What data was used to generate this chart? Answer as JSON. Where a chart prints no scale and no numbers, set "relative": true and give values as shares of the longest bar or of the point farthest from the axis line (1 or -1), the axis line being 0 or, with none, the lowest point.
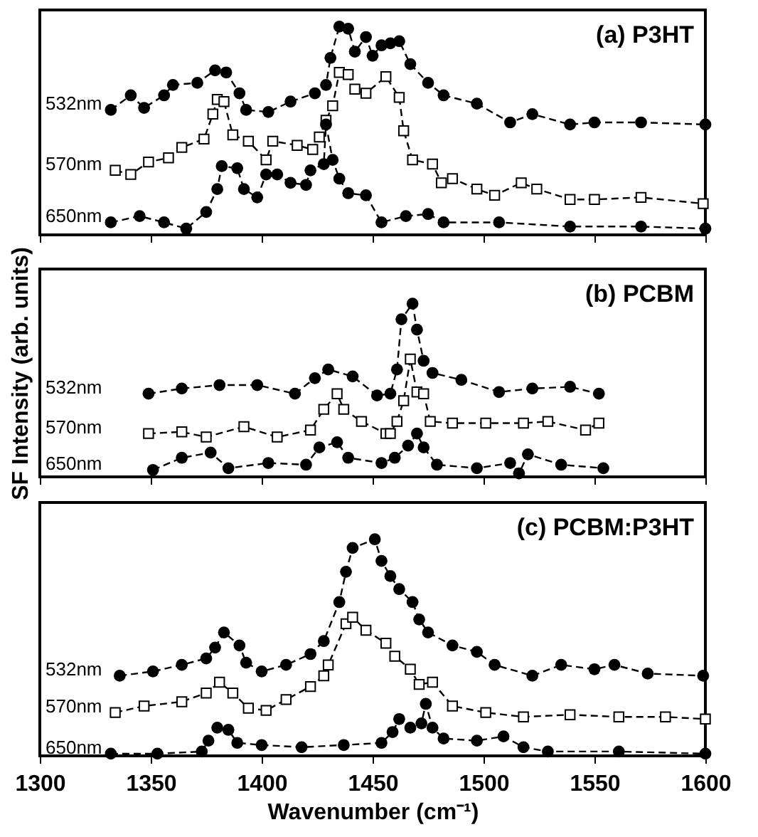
{
  "chart_data": [
    {
      "type": "line",
      "title": "(a) P3HT",
      "relative": true,
      "line_style": "dashed",
      "grid": false,
      "tick_labels": false,
      "xlim": [
        1300,
        1600
      ],
      "xticks": [
        1300,
        1350,
        1400,
        1450,
        1500,
        1550,
        1600
      ],
      "series": [
        {
          "name": "532nm",
          "color": "#000000",
          "marker": "circle",
          "x": [
            1332,
            1341,
            1347,
            1356,
            1360,
            1371,
            1379,
            1384,
            1390,
            1393,
            1403,
            1413,
            1424,
            1429,
            1431,
            1435,
            1439,
            1442,
            1447,
            1450,
            1454,
            1458,
            1462,
            1467,
            1475,
            1482,
            1497,
            1512,
            1522,
            1539,
            1550,
            1571,
            1600
          ],
          "values": [
            0.6,
            0.67,
            0.61,
            0.67,
            0.72,
            0.73,
            0.79,
            0.78,
            0.68,
            0.6,
            0.59,
            0.64,
            0.68,
            0.72,
            0.85,
            1.0,
            0.99,
            0.88,
            0.95,
            0.86,
            0.91,
            0.92,
            0.93,
            0.82,
            0.73,
            0.67,
            0.63,
            0.54,
            0.58,
            0.53,
            0.54,
            0.54,
            0.53
          ]
        },
        {
          "name": "570nm",
          "color": "#000000",
          "marker": "square",
          "x": [
            1334,
            1341,
            1349,
            1358,
            1364,
            1374,
            1378,
            1380,
            1383,
            1387,
            1394,
            1402,
            1405,
            1416,
            1423,
            1426,
            1429,
            1432,
            1435,
            1439,
            1442,
            1447,
            1456,
            1462,
            1464,
            1468,
            1477,
            1481,
            1486,
            1497,
            1505,
            1517,
            1524,
            1539,
            1550,
            1571,
            1599
          ],
          "values": [
            0.31,
            0.29,
            0.35,
            0.37,
            0.42,
            0.46,
            0.58,
            0.65,
            0.64,
            0.48,
            0.45,
            0.36,
            0.45,
            0.43,
            0.41,
            0.47,
            0.55,
            0.62,
            0.78,
            0.77,
            0.7,
            0.68,
            0.76,
            0.66,
            0.5,
            0.36,
            0.34,
            0.25,
            0.27,
            0.22,
            0.19,
            0.25,
            0.22,
            0.17,
            0.17,
            0.18,
            0.15
          ]
        },
        {
          "name": "650nm",
          "color": "#000000",
          "marker": "circle",
          "x": [
            1332,
            1345,
            1356,
            1366,
            1375,
            1380,
            1382,
            1389,
            1392,
            1398,
            1402,
            1407,
            1413,
            1420,
            1422,
            1428,
            1429,
            1432,
            1435,
            1439,
            1447,
            1454,
            1465,
            1475,
            1482,
            1507,
            1539,
            1571,
            1600
          ],
          "values": [
            0.06,
            0.09,
            0.06,
            0.03,
            0.11,
            0.22,
            0.33,
            0.32,
            0.22,
            0.18,
            0.29,
            0.29,
            0.25,
            0.24,
            0.31,
            0.34,
            0.53,
            0.36,
            0.27,
            0.2,
            0.19,
            0.06,
            0.09,
            0.1,
            0.06,
            0.06,
            0.04,
            0.04,
            0.03
          ]
        }
      ]
    },
    {
      "type": "line",
      "title": "(b) PCBM",
      "ylabel": "SF Intensity (arb. units)",
      "relative": true,
      "line_style": "dashed",
      "grid": false,
      "tick_labels": false,
      "xlim": [
        1300,
        1600
      ],
      "xticks": [
        1300,
        1350,
        1400,
        1450,
        1500,
        1550,
        1600
      ],
      "series": [
        {
          "name": "532nm",
          "color": "#000000",
          "marker": "circle",
          "x": [
            1349,
            1364,
            1381,
            1398,
            1415,
            1424,
            1430,
            1441,
            1452,
            1458,
            1461,
            1463,
            1468,
            1470,
            1473,
            1477,
            1490,
            1507,
            1522,
            1539,
            1552
          ],
          "values": [
            0.48,
            0.51,
            0.53,
            0.53,
            0.48,
            0.57,
            0.62,
            0.58,
            0.47,
            0.48,
            0.62,
            0.91,
            1.0,
            0.85,
            0.67,
            0.6,
            0.56,
            0.49,
            0.51,
            0.52,
            0.48
          ]
        },
        {
          "name": "570nm",
          "color": "#000000",
          "marker": "square",
          "x": [
            1349,
            1364,
            1375,
            1392,
            1407,
            1422,
            1428,
            1434,
            1437,
            1445,
            1456,
            1458,
            1461,
            1464,
            1467,
            1470,
            1473,
            1476,
            1486,
            1501,
            1518,
            1529,
            1546,
            1552
          ],
          "values": [
            0.25,
            0.26,
            0.23,
            0.29,
            0.23,
            0.27,
            0.39,
            0.48,
            0.39,
            0.32,
            0.25,
            0.25,
            0.32,
            0.44,
            0.68,
            0.49,
            0.48,
            0.32,
            0.31,
            0.31,
            0.31,
            0.32,
            0.27,
            0.31
          ]
        },
        {
          "name": "650nm",
          "color": "#000000",
          "marker": "circle",
          "x": [
            1351,
            1364,
            1377,
            1385,
            1403,
            1420,
            1426,
            1434,
            1439,
            1454,
            1460,
            1466,
            1470,
            1473,
            1479,
            1497,
            1512,
            1516,
            1520,
            1535,
            1554
          ],
          "values": [
            0.04,
            0.11,
            0.14,
            0.05,
            0.08,
            0.07,
            0.17,
            0.2,
            0.11,
            0.08,
            0.11,
            0.18,
            0.25,
            0.17,
            0.07,
            0.05,
            0.08,
            0.02,
            0.13,
            0.07,
            0.05
          ]
        }
      ]
    },
    {
      "type": "line",
      "title": "(c) PCBM:P3HT",
      "xlabel": "Wavenumber (cm⁻¹)",
      "relative": true,
      "line_style": "dashed",
      "grid": false,
      "tick_labels": "x",
      "xlim": [
        1300,
        1600
      ],
      "xticks": [
        1300,
        1350,
        1400,
        1450,
        1500,
        1550,
        1600
      ],
      "series": [
        {
          "name": "532nm",
          "color": "#000000",
          "marker": "circle",
          "x": [
            1336,
            1351,
            1364,
            1375,
            1379,
            1383,
            1390,
            1393,
            1400,
            1411,
            1422,
            1428,
            1435,
            1438,
            1441,
            1451,
            1454,
            1458,
            1462,
            1468,
            1471,
            1475,
            1486,
            1497,
            1505,
            1522,
            1535,
            1550,
            1559,
            1574,
            1599
          ],
          "values": [
            0.37,
            0.39,
            0.42,
            0.45,
            0.5,
            0.57,
            0.51,
            0.43,
            0.39,
            0.42,
            0.47,
            0.53,
            0.71,
            0.85,
            0.96,
            1.0,
            0.9,
            0.83,
            0.77,
            0.71,
            0.63,
            0.57,
            0.51,
            0.48,
            0.42,
            0.37,
            0.42,
            0.4,
            0.42,
            0.38,
            0.37
          ]
        },
        {
          "name": "570nm",
          "color": "#000000",
          "marker": "square",
          "x": [
            1334,
            1347,
            1364,
            1375,
            1381,
            1387,
            1394,
            1402,
            1411,
            1422,
            1428,
            1430,
            1438,
            1441,
            1447,
            1456,
            1460,
            1467,
            1471,
            1477,
            1486,
            1501,
            1518,
            1539,
            1561,
            1582,
            1600
          ],
          "values": [
            0.2,
            0.23,
            0.25,
            0.29,
            0.34,
            0.29,
            0.22,
            0.21,
            0.26,
            0.32,
            0.37,
            0.42,
            0.61,
            0.64,
            0.58,
            0.52,
            0.46,
            0.4,
            0.33,
            0.34,
            0.23,
            0.2,
            0.18,
            0.19,
            0.18,
            0.18,
            0.17
          ]
        },
        {
          "name": "650nm",
          "color": "#000000",
          "marker": "circle",
          "x": [
            1332,
            1353,
            1373,
            1376,
            1380,
            1385,
            1389,
            1400,
            1418,
            1437,
            1454,
            1459,
            1462,
            1467,
            1472,
            1474,
            1477,
            1482,
            1497,
            1509,
            1518,
            1529,
            1561,
            1600
          ],
          "values": [
            0.01,
            0.01,
            0.02,
            0.07,
            0.13,
            0.12,
            0.06,
            0.05,
            0.04,
            0.05,
            0.06,
            0.11,
            0.17,
            0.13,
            0.15,
            0.24,
            0.13,
            0.08,
            0.07,
            0.09,
            0.04,
            0.02,
            0.02,
            0.01
          ]
        }
      ]
    }
  ]
}
